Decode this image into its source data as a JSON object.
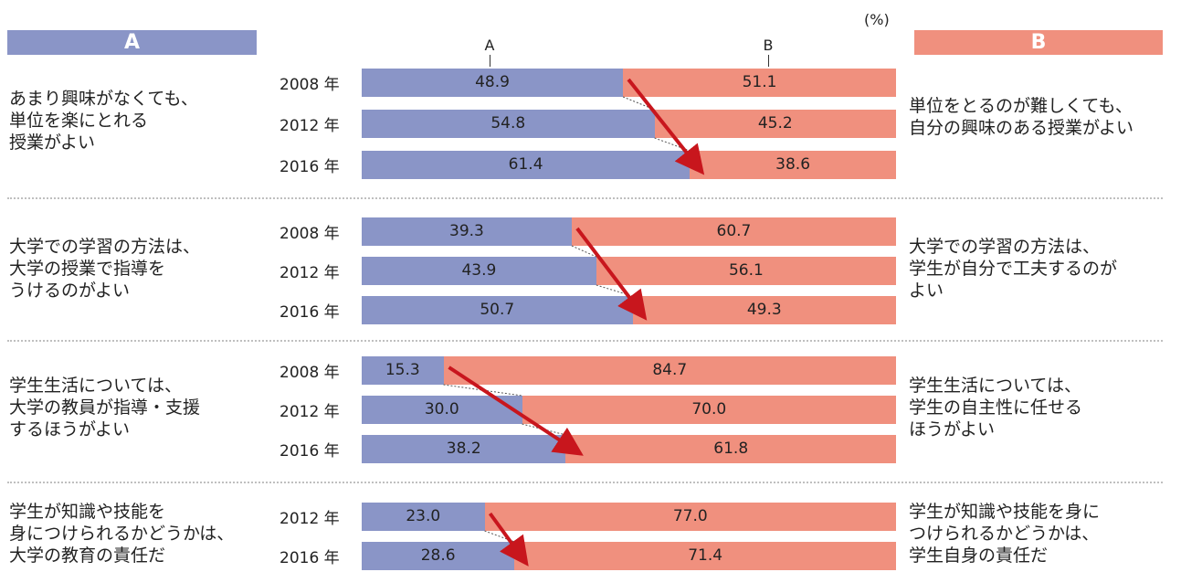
{
  "unit": "(%)",
  "header": {
    "a": "A",
    "b": "B"
  },
  "axis": {
    "a": "A",
    "b": "B"
  },
  "colors": {
    "a": "#8a95c7",
    "b": "#f0907e",
    "arrow": "#c8161d"
  },
  "chart_data": {
    "type": "bar",
    "stacked": true,
    "orientation": "horizontal",
    "xlim": [
      0,
      100
    ],
    "groups": [
      {
        "a_label": [
          "あまり興味がなくても、",
          "単位を楽にとれる",
          "授業がよい"
        ],
        "b_label": [
          "単位をとるのが難しくても、",
          "自分の興味のある授業がよい"
        ],
        "rows": [
          {
            "year": "2008 年",
            "a": "48.9",
            "b": "51.1"
          },
          {
            "year": "2012 年",
            "a": "54.8",
            "b": "45.2"
          },
          {
            "year": "2016 年",
            "a": "61.4",
            "b": "38.6"
          }
        ]
      },
      {
        "a_label": [
          "大学での学習の方法は、",
          "大学の授業で指導を",
          "うけるのがよい"
        ],
        "b_label": [
          "大学での学習の方法は、",
          "学生が自分で工夫するのが",
          "よい"
        ],
        "rows": [
          {
            "year": "2008 年",
            "a": "39.3",
            "b": "60.7"
          },
          {
            "year": "2012 年",
            "a": "43.9",
            "b": "56.1"
          },
          {
            "year": "2016 年",
            "a": "50.7",
            "b": "49.3"
          }
        ]
      },
      {
        "a_label": [
          "学生生活については、",
          "大学の教員が指導・支援",
          "するほうがよい"
        ],
        "b_label": [
          "学生生活については、",
          "学生の自主性に任せる",
          "ほうがよい"
        ],
        "rows": [
          {
            "year": "2008 年",
            "a": "15.3",
            "b": "84.7"
          },
          {
            "year": "2012 年",
            "a": "30.0",
            "b": "70.0"
          },
          {
            "year": "2016 年",
            "a": "38.2",
            "b": "61.8"
          }
        ]
      },
      {
        "a_label": [
          "学生が知識や技能を",
          "身につけられるかどうかは、",
          "大学の教育の責任だ"
        ],
        "b_label": [
          "学生が知識や技能を身に",
          "つけられるかどうかは、",
          "学生自身の責任だ"
        ],
        "rows": [
          {
            "year": "2012 年",
            "a": "23.0",
            "b": "77.0"
          },
          {
            "year": "2016 年",
            "a": "28.6",
            "b": "71.4"
          }
        ]
      }
    ]
  }
}
